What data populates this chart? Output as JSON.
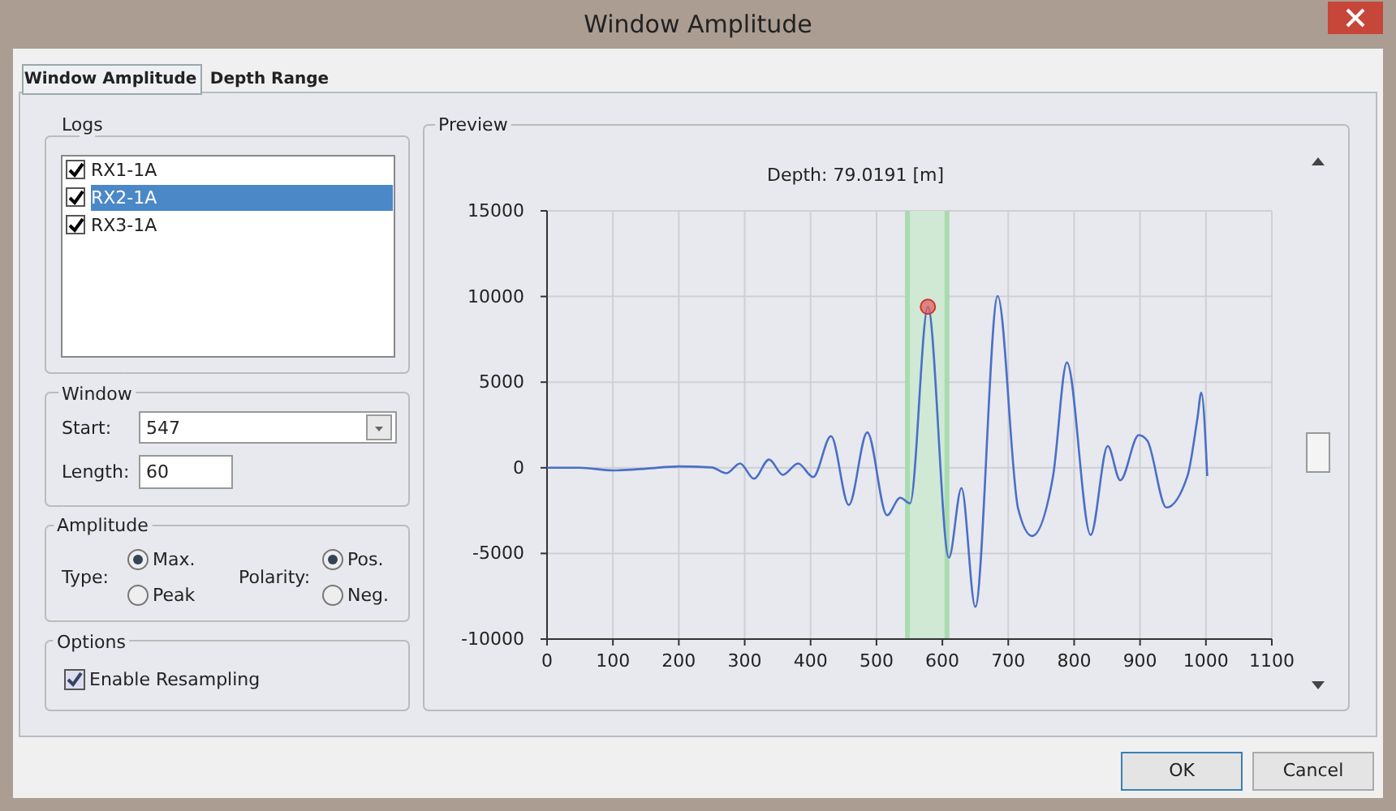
{
  "chart_data": [
    {
      "type": "other",
      "title": "Window Amplitude",
      "annotations": [
        "Window Amplitude",
        "Depth Range",
        "Logs",
        "RX1-1A",
        "RX2-1A",
        "RX3-1A",
        "Window",
        "Start:",
        "547",
        "Length:",
        "60",
        "Amplitude",
        "Type:",
        "Max.",
        "Peak",
        "Polarity:",
        "Pos.",
        "Neg.",
        "Options",
        "Enable Resampling",
        "Preview",
        "OK",
        "Cancel"
      ]
    },
    {
      "type": "line",
      "title": "Depth: 79.0191 [m]",
      "xlim": [
        0,
        1100
      ],
      "xticks": [
        0,
        100,
        200,
        300,
        400,
        500,
        600,
        700,
        800,
        900,
        1000,
        1100
      ],
      "ylim": [
        -10000,
        15000
      ],
      "yticks": [
        -10000,
        -5000,
        0,
        5000,
        10000,
        15000
      ],
      "grid": true,
      "ref_lines": [
        {
          "axis": "x",
          "value": 547,
          "color": "#a8dcb0"
        },
        {
          "axis": "x",
          "value": 607,
          "color": "#a8dcb0"
        }
      ],
      "series": [
        {
          "type": "line",
          "color": "#4a6fc8",
          "marker": "none",
          "x": [
            0,
            50,
            100,
            150,
            200,
            250,
            272,
            293,
            314,
            337,
            358,
            381,
            404,
            431,
            458,
            486,
            516,
            536,
            551,
            578,
            610,
            629,
            650,
            684,
            715,
            736,
            768,
            789,
            825,
            851,
            870,
            898,
            911,
            940,
            972,
            987,
            993,
            1002
          ],
          "values": [
            0,
            0,
            -150,
            -50,
            80,
            20,
            -320,
            250,
            -640,
            480,
            -410,
            250,
            -540,
            1850,
            -2170,
            2070,
            -2770,
            -1750,
            -2070,
            9400,
            -5250,
            -1180,
            -8120,
            10030,
            -2390,
            -3980,
            -480,
            6150,
            -3920,
            1270,
            -730,
            1910,
            1590,
            -2320,
            -480,
            2870,
            4390,
            -480
          ]
        },
        {
          "type": "scatter",
          "color": "#e05a5a",
          "marker": "circle",
          "x": [
            578
          ],
          "values": [
            9400
          ]
        }
      ],
      "bands": [
        {
          "axis": "x",
          "from": 547,
          "to": 607,
          "color": "#cfe9d4"
        }
      ]
    }
  ]
}
